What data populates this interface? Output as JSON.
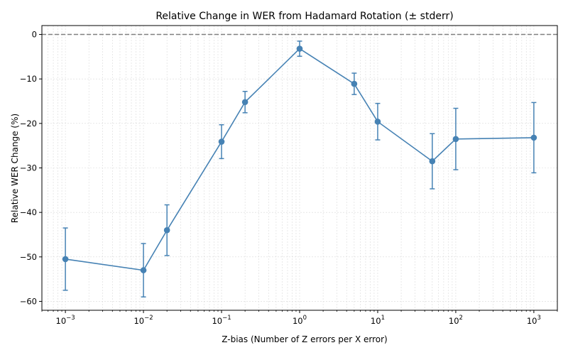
{
  "chart_data": {
    "type": "line",
    "title": "Relative Change in WER from Hadamard Rotation (± stderr)",
    "xlabel": "Z-bias (Number of Z errors per X error)",
    "ylabel": "Relative WER Change (%)",
    "x_scale": "log",
    "xlim": [
      0.0005,
      2000
    ],
    "ylim": [
      -62,
      2
    ],
    "x_ticks": [
      {
        "value": 0.001,
        "base": "10",
        "exp": "−3"
      },
      {
        "value": 0.01,
        "base": "10",
        "exp": "−2"
      },
      {
        "value": 0.1,
        "base": "10",
        "exp": "−1"
      },
      {
        "value": 1,
        "base": "10",
        "exp": "0"
      },
      {
        "value": 10,
        "base": "10",
        "exp": "1"
      },
      {
        "value": 100,
        "base": "10",
        "exp": "2"
      },
      {
        "value": 1000,
        "base": "10",
        "exp": "3"
      }
    ],
    "y_ticks": [
      {
        "value": 0,
        "label": "0"
      },
      {
        "value": -10,
        "label": "−10"
      },
      {
        "value": -20,
        "label": "−20"
      },
      {
        "value": -30,
        "label": "−30"
      },
      {
        "value": -40,
        "label": "−40"
      },
      {
        "value": -50,
        "label": "−50"
      },
      {
        "value": -60,
        "label": "−60"
      }
    ],
    "grid": true,
    "reference_line": {
      "y": 0,
      "style": "dashed",
      "color": "#808080"
    },
    "series": [
      {
        "color": "#4682b4",
        "x": [
          0.001,
          0.01,
          0.02,
          0.1,
          0.2,
          1,
          5,
          10,
          50,
          100,
          1000
        ],
        "y": [
          -50.5,
          -53.0,
          -44.0,
          -24.1,
          -15.2,
          -3.2,
          -11.1,
          -19.6,
          -28.5,
          -23.5,
          -23.2
        ],
        "stderr": [
          7.0,
          6.0,
          5.7,
          3.8,
          2.4,
          1.7,
          2.4,
          4.1,
          6.2,
          6.9,
          7.9
        ]
      }
    ]
  }
}
